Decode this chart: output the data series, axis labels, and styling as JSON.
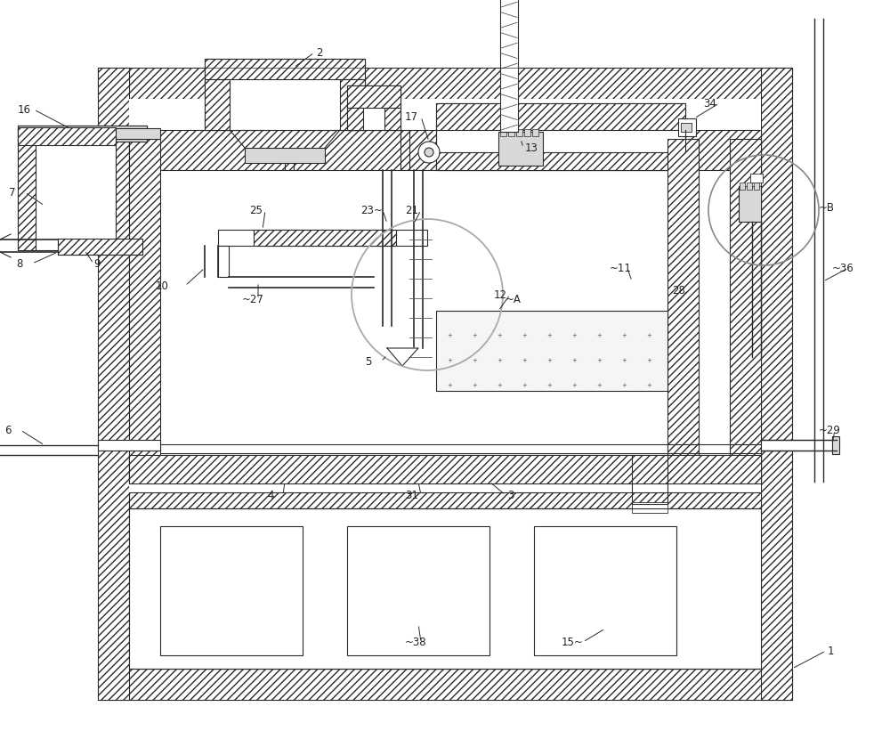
{
  "bg_color": "#ffffff",
  "lc": "#2a2a2a",
  "hatch_lc": "#444444",
  "gray_fill": "#d8d8d8",
  "light_gray": "#eeeeee",
  "figsize": [
    10.0,
    8.21
  ],
  "dpi": 100,
  "xl": 0.0,
  "xr": 1.0,
  "yb": 0.0,
  "yt": 1.0
}
